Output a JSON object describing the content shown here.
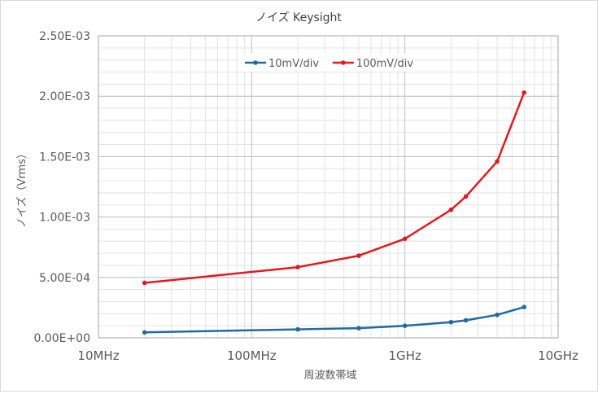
{
  "chart_data": {
    "type": "line",
    "title": "ノイズ Keysight",
    "xlabel": "周波数帯域",
    "ylabel": "ノイズ（Vrms）",
    "x_scale": "log",
    "xlim": [
      10000000,
      10000000000
    ],
    "ylim": [
      0,
      0.0025
    ],
    "x_ticks": [
      {
        "value": 10000000,
        "label": "10MHz"
      },
      {
        "value": 100000000,
        "label": "100MHz"
      },
      {
        "value": 1000000000,
        "label": "1GHz"
      },
      {
        "value": 10000000000,
        "label": "10GHz"
      }
    ],
    "y_ticks": [
      {
        "value": 0,
        "label": "0.00E+00"
      },
      {
        "value": 0.0005,
        "label": "5.00E-04"
      },
      {
        "value": 0.001,
        "label": "1.00E-03"
      },
      {
        "value": 0.0015,
        "label": "1.50E-03"
      },
      {
        "value": 0.002,
        "label": "2.00E-03"
      },
      {
        "value": 0.0025,
        "label": "2.50E-03"
      }
    ],
    "grid": true,
    "legend_position": "top",
    "series": [
      {
        "name": "10mV/div",
        "color": "#1f6aa5",
        "points": [
          {
            "x": 20000000,
            "y": 4.5e-05
          },
          {
            "x": 200000000,
            "y": 7e-05
          },
          {
            "x": 500000000,
            "y": 8e-05
          },
          {
            "x": 1000000000,
            "y": 0.0001
          },
          {
            "x": 2000000000,
            "y": 0.00013
          },
          {
            "x": 2500000000,
            "y": 0.000145
          },
          {
            "x": 4000000000,
            "y": 0.00019
          },
          {
            "x": 6000000000,
            "y": 0.000255
          }
        ]
      },
      {
        "name": "100mV/div",
        "color": "#e31a1c",
        "points": [
          {
            "x": 20000000,
            "y": 0.000455
          },
          {
            "x": 200000000,
            "y": 0.000585
          },
          {
            "x": 500000000,
            "y": 0.00068
          },
          {
            "x": 1000000000,
            "y": 0.00082
          },
          {
            "x": 2000000000,
            "y": 0.00106
          },
          {
            "x": 2500000000,
            "y": 0.00117
          },
          {
            "x": 4000000000,
            "y": 0.00146
          },
          {
            "x": 6000000000,
            "y": 0.00203
          }
        ]
      }
    ]
  }
}
